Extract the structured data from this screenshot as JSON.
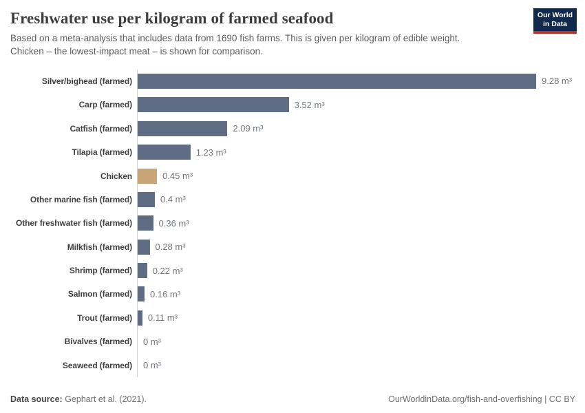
{
  "header": {
    "title": "Freshwater use per kilogram of farmed seafood",
    "subtitle_lines": [
      "Based on a meta-analysis that includes data from 1690 fish farms. This is given per kilogram of edible weight.",
      "Chicken – the lowest-impact meat – is shown for comparison."
    ],
    "logo": {
      "line1": "Our World",
      "line2": "in Data",
      "bg_color": "#12294e",
      "accent_color": "#b5332c"
    }
  },
  "chart_data": {
    "type": "bar",
    "orientation": "horizontal",
    "title": "Freshwater use per kilogram of farmed seafood",
    "unit": "m³",
    "categories": [
      "Silver/bighead (farmed)",
      "Carp (farmed)",
      "Catfish (farmed)",
      "Tilapia (farmed)",
      "Chicken",
      "Other marine fish (farmed)",
      "Other freshwater fish (farmed)",
      "Milkfish (farmed)",
      "Shrimp (farmed)",
      "Salmon (farmed)",
      "Trout (farmed)",
      "Bivalves (farmed)",
      "Seaweed (farmed)"
    ],
    "values": [
      9.28,
      3.52,
      2.09,
      1.23,
      0.45,
      0.4,
      0.36,
      0.28,
      0.22,
      0.16,
      0.11,
      0,
      0
    ],
    "value_labels": [
      "9.28 m³",
      "3.52 m³",
      "2.09 m³",
      "1.23 m³",
      "0.45 m³",
      "0.4 m³",
      "0.36 m³",
      "0.28 m³",
      "0.22 m³",
      "0.16 m³",
      "0.11 m³",
      "0 m³",
      "0 m³"
    ],
    "xlim": [
      0,
      9.28
    ],
    "grid": false,
    "legend": false,
    "bar_color": "#5e6d84",
    "highlight": {
      "index": 4,
      "category": "Chicken",
      "color": "#c9a477"
    },
    "axis_color": "#d0d0d0"
  },
  "footer": {
    "datasource_label": "Data source:",
    "datasource_value": " Gephart et al. (2021).",
    "right_text": "OurWorldinData.org/fish-and-overfishing | CC BY"
  }
}
